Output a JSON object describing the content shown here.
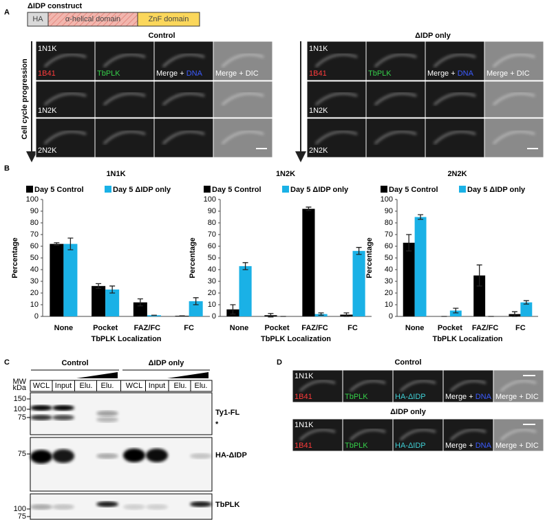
{
  "panel_a": {
    "letter": "A",
    "construct_title": "ΔIDP construct",
    "domains": [
      "HA",
      "α-helical domain",
      "ZnF domain"
    ],
    "axis_label": "Cell cycle progression",
    "groups": [
      "Control",
      "ΔIDP only"
    ],
    "stages": [
      "1N1K",
      "1N2K",
      "2N2K"
    ],
    "channels": [
      "1B41",
      "TbPLK",
      "Merge + ",
      "DNA",
      "Merge + DIC"
    ]
  },
  "panel_b": {
    "letter": "B"
  },
  "chart_data": [
    {
      "type": "bar",
      "title": "1N1K",
      "categories": [
        "None",
        "Pocket",
        "FAZ/FC",
        "FC"
      ],
      "x_label": "TbPLK Localization",
      "y_label": "Percentage",
      "ylim": [
        0,
        100
      ],
      "yticks": [
        0,
        10,
        20,
        30,
        40,
        50,
        60,
        70,
        80,
        90,
        100
      ],
      "series": [
        {
          "name": "Day 5 Control",
          "color": "#000000",
          "values": [
            62,
            26,
            12,
            0.5
          ],
          "errors": [
            1,
            2,
            3,
            0
          ]
        },
        {
          "name": "Day 5 ΔIDP only",
          "color": "#1ab1e6",
          "values": [
            62,
            23,
            1,
            13
          ],
          "errors": [
            5,
            3,
            0,
            3
          ]
        }
      ]
    },
    {
      "type": "bar",
      "title": "1N2K",
      "categories": [
        "None",
        "Pocket",
        "FAZ/FC",
        "FC"
      ],
      "x_label": "TbPLK Localization",
      "y_label": "Percentage",
      "ylim": [
        0,
        100
      ],
      "yticks": [
        0,
        10,
        20,
        30,
        40,
        50,
        60,
        70,
        80,
        90,
        100
      ],
      "series": [
        {
          "name": "Day 5 Control",
          "color": "#000000",
          "values": [
            6,
            1,
            92,
            1.5
          ],
          "errors": [
            4,
            1.5,
            1.5,
            1.5
          ]
        },
        {
          "name": "Day 5 ΔIDP only",
          "color": "#1ab1e6",
          "values": [
            43,
            0,
            2,
            56
          ],
          "errors": [
            3,
            0,
            1,
            3
          ]
        }
      ]
    },
    {
      "type": "bar",
      "title": "2N2K",
      "categories": [
        "None",
        "Pocket",
        "FAZ/FC",
        "FC"
      ],
      "x_label": "TbPLK Localization",
      "y_label": "Percentage",
      "ylim": [
        0,
        100
      ],
      "yticks": [
        0,
        10,
        20,
        30,
        40,
        50,
        60,
        70,
        80,
        90,
        100
      ],
      "series": [
        {
          "name": "Day 5 Control",
          "color": "#000000",
          "values": [
            63,
            0,
            35,
            2
          ],
          "errors": [
            7,
            0,
            9,
            2
          ]
        },
        {
          "name": "Day 5 ΔIDP only",
          "color": "#1ab1e6",
          "values": [
            85,
            5,
            0,
            12
          ],
          "errors": [
            2,
            2,
            0,
            1.5
          ]
        }
      ]
    }
  ],
  "panel_c": {
    "letter": "C",
    "groups": [
      "Control",
      "ΔIDP only"
    ],
    "mw_label": [
      "MW",
      "kDa"
    ],
    "lanes": [
      "WCL",
      "Input",
      "Elu.",
      "Elu.",
      "WCL",
      "Input",
      "Elu.",
      "Elu."
    ],
    "blots": [
      {
        "label": "Ty1-FL",
        "markers": [
          150,
          100,
          75
        ],
        "note": "*"
      },
      {
        "label": "HA-ΔIDP",
        "markers": [
          75
        ]
      },
      {
        "label": "TbPLK",
        "markers": [
          100,
          75
        ]
      }
    ]
  },
  "panel_d": {
    "letter": "D",
    "groups": [
      "Control",
      "ΔIDP only"
    ],
    "stage": "1N1K",
    "channels": [
      "1B41",
      "TbPLK",
      "HA-ΔIDP",
      "Merge + ",
      "DNA",
      "Merge + DIC"
    ]
  }
}
